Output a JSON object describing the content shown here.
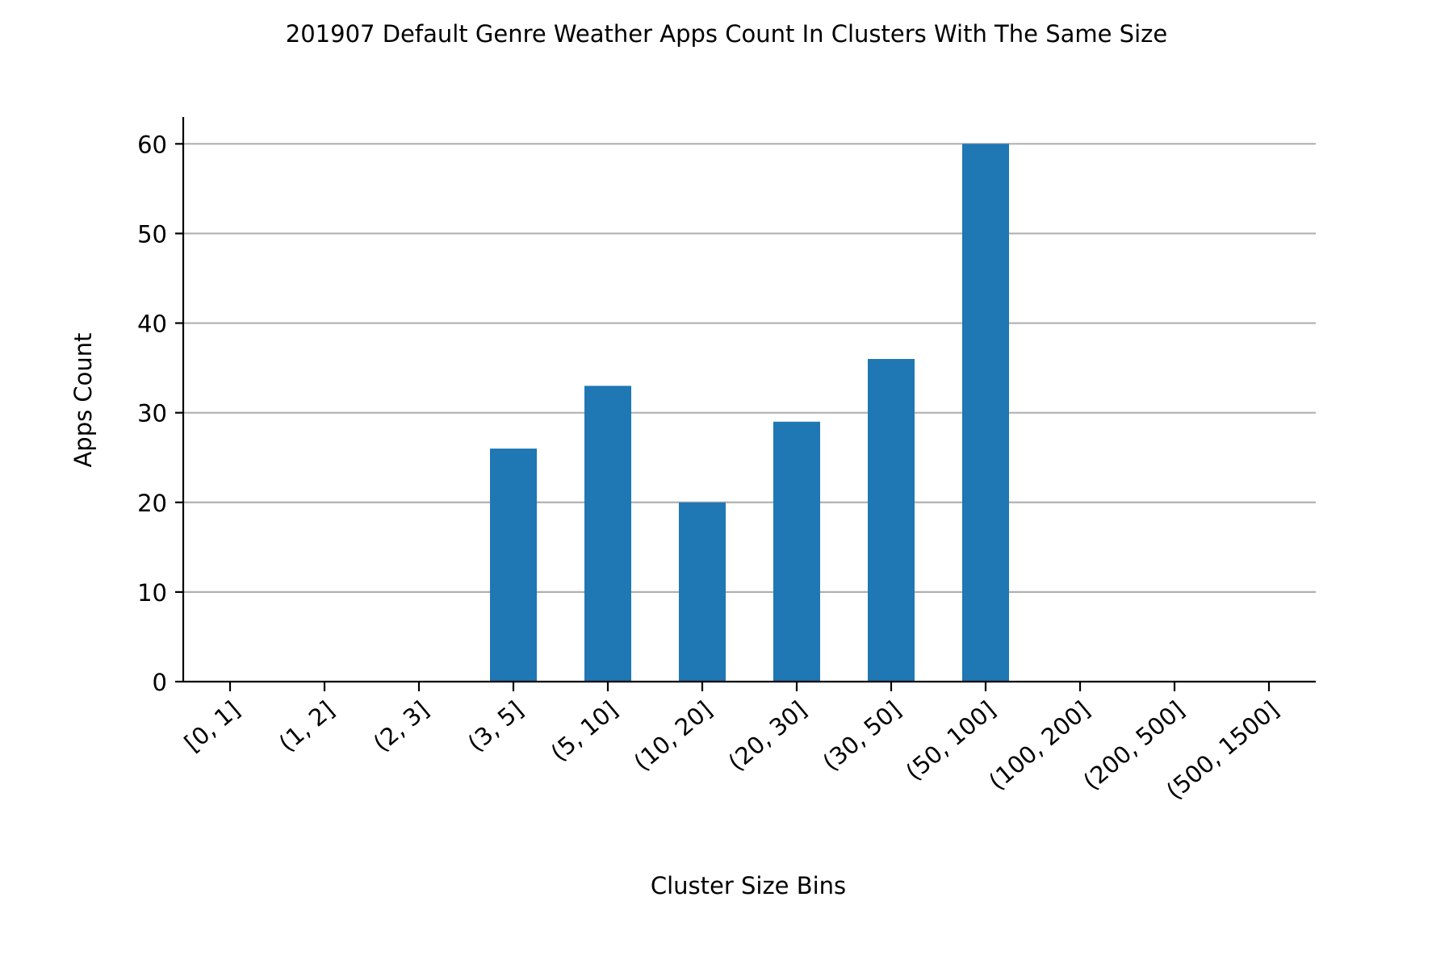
{
  "chart_data": {
    "type": "bar",
    "title": "201907 Default Genre Weather Apps Count In Clusters With The Same Size",
    "xlabel": "Cluster Size Bins",
    "ylabel": "Apps Count",
    "categories": [
      "[0, 1]",
      "(1, 2]",
      "(2, 3]",
      "(3, 5]",
      "(5, 10]",
      "(10, 20]",
      "(20, 30]",
      "(30, 50]",
      "(50, 100]",
      "(100, 200]",
      "(200, 500]",
      "(500, 1500]"
    ],
    "values": [
      0,
      0,
      0,
      26,
      33,
      20,
      29,
      36,
      60,
      0,
      0,
      0
    ],
    "ylim": [
      0,
      63
    ],
    "yticks": [
      0,
      10,
      20,
      30,
      40,
      50,
      60
    ],
    "grid": "horizontal",
    "legend": "none",
    "colors": {
      "bar": "#1f77b4",
      "grid": "#b0b0b0",
      "axis": "#000000"
    }
  }
}
